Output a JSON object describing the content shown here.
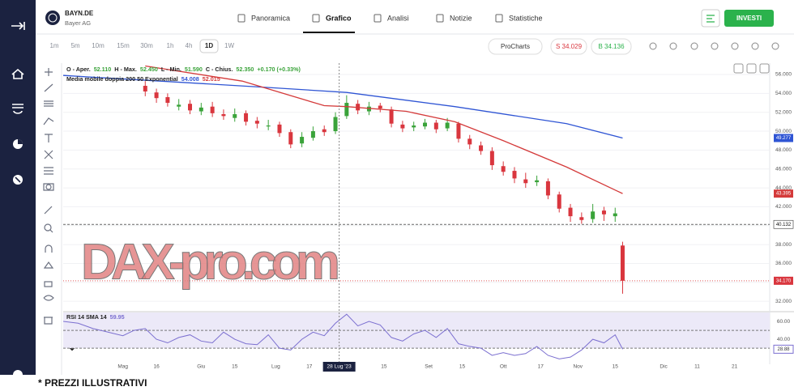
{
  "header": {
    "symbol": "BAYN.DE",
    "company": "Bayer AG",
    "tabs": [
      "Panoramica",
      "Grafico",
      "Analisi",
      "Notizie",
      "Statistiche"
    ],
    "active_tab": 1,
    "invest_button": "INVESTI"
  },
  "toolbar": {
    "timeframes": [
      "1m",
      "5m",
      "10m",
      "15m",
      "30m",
      "1h",
      "4h",
      "1D",
      "1W"
    ],
    "active_timeframe": 7,
    "procharts": "ProCharts",
    "sell": "S 34.029",
    "buy": "B 34.136"
  },
  "legend": {
    "ohlc": [
      "O - Aper.",
      "52.110",
      "H - Max.",
      "52.450",
      "L - Min.",
      "51.590",
      "C - Chius.",
      "52.350",
      "+0.170 (+0.33%)"
    ],
    "ma": [
      "Media mobile doppia 200 50 Exponential",
      "54.008",
      "52.015"
    ],
    "rsi": [
      "RSI 14 SMA 14",
      "59.95"
    ]
  },
  "chart_data": {
    "type": "candlestick",
    "x": [
      6,
      9,
      12,
      15,
      18,
      21,
      24,
      27,
      30,
      33,
      36,
      39,
      42,
      45,
      48,
      51,
      54,
      57,
      60,
      63,
      66,
      69,
      72,
      75,
      78,
      81,
      84,
      87,
      90,
      93,
      96,
      99,
      102,
      105,
      108,
      111,
      114,
      117,
      120,
      123,
      126,
      129,
      132,
      134
    ],
    "open": [
      54.8,
      54.1,
      53.6,
      52.6,
      52.9,
      52.1,
      52.6,
      51.8,
      51.4,
      51.9,
      51.1,
      50.5,
      50.7,
      49.9,
      48.7,
      49.3,
      50.2,
      50.0,
      51.6,
      52.9,
      52.1,
      52.7,
      52.3,
      50.7,
      50.4,
      50.5,
      50.9,
      50.3,
      50.8,
      49.2,
      48.5,
      47.9,
      46.3,
      45.8,
      44.9,
      44.6,
      44.7,
      43.3,
      41.9,
      40.9,
      40.7,
      41.6,
      41.0,
      37.9
    ],
    "high": [
      55.3,
      54.5,
      54.0,
      53.4,
      53.3,
      53.0,
      53.1,
      52.3,
      52.4,
      52.2,
      51.5,
      51.2,
      51.0,
      50.2,
      49.9,
      50.5,
      50.6,
      52.0,
      53.8,
      53.3,
      53.1,
      53.0,
      52.6,
      51.1,
      51.0,
      51.3,
      51.2,
      51.4,
      51.0,
      49.6,
      48.9,
      48.3,
      46.8,
      46.2,
      45.6,
      45.3,
      45.0,
      43.6,
      42.3,
      41.4,
      42.3,
      42.0,
      41.9,
      38.3
    ],
    "low": [
      53.7,
      53.0,
      52.6,
      52.2,
      51.8,
      51.7,
      51.5,
      51.2,
      51.0,
      50.6,
      50.3,
      50.1,
      49.4,
      48.2,
      48.3,
      49.0,
      49.5,
      49.7,
      51.3,
      51.8,
      51.7,
      52.0,
      50.4,
      49.9,
      50.0,
      50.2,
      49.8,
      50.0,
      48.8,
      48.1,
      47.5,
      45.9,
      45.3,
      44.5,
      44.0,
      44.2,
      42.8,
      41.4,
      40.4,
      40.2,
      40.3,
      40.5,
      40.4,
      32.8
    ],
    "close": [
      54.2,
      53.5,
      53.0,
      52.8,
      52.2,
      52.5,
      51.9,
      51.6,
      51.8,
      51.0,
      50.8,
      50.6,
      49.8,
      48.6,
      49.4,
      50.0,
      49.9,
      51.5,
      53.0,
      52.2,
      52.6,
      52.4,
      50.8,
      50.3,
      50.6,
      50.9,
      50.2,
      50.9,
      49.2,
      48.6,
      47.9,
      46.4,
      45.7,
      45.0,
      44.5,
      44.8,
      43.2,
      41.8,
      41.0,
      40.6,
      41.5,
      41.2,
      41.3,
      34.17
    ],
    "up_color": "#3aa33a",
    "down_color": "#d9363e",
    "lines": [
      {
        "color": "#2f55d4",
        "x": [
          -16,
          10,
          40,
          60,
          89,
          119,
          134
        ],
        "values": [
          55.9,
          55.3,
          54.6,
          54.1,
          52.6,
          50.8,
          49.277
        ]
      },
      {
        "color": "#d43a3a",
        "x": [
          6,
          32,
          54,
          60,
          76,
          89,
          102,
          119,
          134
        ],
        "values": [
          56.9,
          55.3,
          52.7,
          52.6,
          52.1,
          51.0,
          49.0,
          46.2,
          43.395
        ]
      }
    ],
    "prev_close": 40.132,
    "bid": {
      "value": 34.17,
      "label": "34.170"
    },
    "xlim": [
      -16,
      173
    ],
    "xticks": [
      {
        "value": 0,
        "label": "Mag"
      },
      {
        "value": 9,
        "label": "16"
      },
      {
        "value": 21,
        "label": "Giu"
      },
      {
        "value": 30,
        "label": "15"
      },
      {
        "value": 41,
        "label": "Lug"
      },
      {
        "value": 50,
        "label": "17"
      },
      {
        "value": 58,
        "label": "28 Lug '23"
      },
      {
        "value": 70,
        "label": "15"
      },
      {
        "value": 82,
        "label": "Set"
      },
      {
        "value": 91,
        "label": "15"
      },
      {
        "value": 102,
        "label": "Ott"
      },
      {
        "value": 112,
        "label": "17"
      },
      {
        "value": 122,
        "label": "Nov"
      },
      {
        "value": 132,
        "label": "15"
      },
      {
        "value": 145,
        "label": "Dic"
      },
      {
        "value": 154,
        "label": "11"
      },
      {
        "value": 164,
        "label": "21"
      }
    ],
    "crosshair_tick": 6,
    "ylim": [
      30.9,
      57.2
    ],
    "yticks": [
      {
        "value": 56,
        "label": "56.000"
      },
      {
        "value": 54,
        "label": "54.000"
      },
      {
        "value": 52,
        "label": "52.000"
      },
      {
        "value": 50,
        "label": "50.000"
      },
      {
        "value": 48,
        "label": "48.000"
      },
      {
        "value": 46,
        "label": "46.000"
      },
      {
        "value": 44,
        "label": "44.000"
      },
      {
        "value": 42,
        "label": "42.000"
      },
      {
        "value": 40,
        "label": "40.000"
      },
      {
        "value": 38,
        "label": "38.000"
      },
      {
        "value": 36,
        "label": "36.000"
      },
      {
        "value": 34,
        "label": "34.000"
      },
      {
        "value": 32,
        "label": "32.000"
      }
    ],
    "grid": true,
    "rsi": {
      "color": "#7b6fd0",
      "x": [
        -16,
        -12,
        -8,
        -4,
        0,
        3,
        6,
        9,
        12,
        15,
        18,
        21,
        24,
        27,
        30,
        33,
        36,
        39,
        42,
        45,
        48,
        51,
        54,
        57,
        60,
        63,
        66,
        69,
        72,
        75,
        78,
        81,
        84,
        87,
        90,
        93,
        96,
        99,
        102,
        105,
        108,
        111,
        114,
        117,
        120,
        123,
        126,
        129,
        132,
        134
      ],
      "values": [
        60,
        58,
        52,
        48,
        44,
        50,
        52,
        40,
        36,
        42,
        45,
        38,
        36,
        48,
        40,
        35,
        34,
        45,
        30,
        28,
        40,
        48,
        44,
        58,
        68,
        55,
        60,
        56,
        42,
        38,
        46,
        50,
        42,
        52,
        35,
        32,
        30,
        22,
        25,
        22,
        24,
        32,
        22,
        18,
        20,
        28,
        40,
        36,
        45,
        28.88
      ],
      "ylim": [
        12,
        70
      ],
      "yticks": [
        {
          "value": 60,
          "label": "60.00"
        },
        {
          "value": 40,
          "label": "40.00"
        }
      ],
      "band": [
        30,
        70
      ],
      "levels": [
        50,
        30
      ]
    }
  },
  "watermark": "DAX-pro.com",
  "footnote": "* PREZZI ILLUSTRATIVI"
}
